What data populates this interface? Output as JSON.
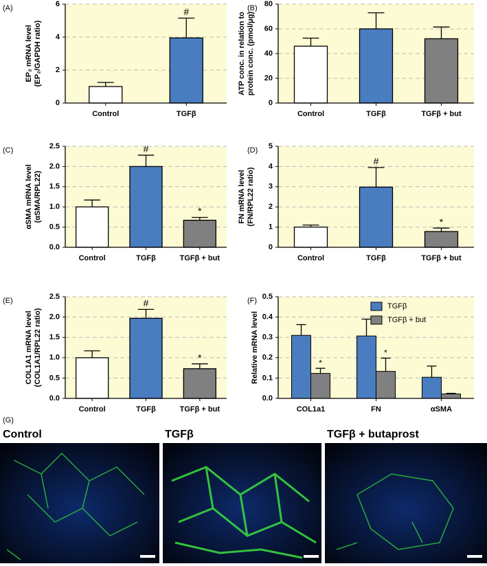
{
  "chart_data": [
    {
      "type": "bar",
      "panel": "(A)",
      "ylabel": [
        "EP₂ mRNA level",
        "(EP₂/GAPDH ratio)"
      ],
      "categories": [
        "Control",
        "TGFβ"
      ],
      "values": [
        1,
        3.95
      ],
      "errors": [
        0.25,
        1.2
      ],
      "colors": [
        "#ffffff",
        "#4a7cc0"
      ],
      "markers": [
        null,
        "#"
      ],
      "ylim": [
        0,
        6
      ],
      "yticks": [
        0,
        2,
        4,
        6
      ],
      "grid": true
    },
    {
      "type": "bar",
      "panel": "(B)",
      "ylabel": [
        "ATP conc. in relation to",
        "protein conc. (pmol/μg)"
      ],
      "categories": [
        "Control",
        "TGFβ",
        "TGFβ + but"
      ],
      "values": [
        46,
        60,
        52
      ],
      "errors": [
        6.5,
        13,
        9.5
      ],
      "colors": [
        "#ffffff",
        "#4a7cc0",
        "#808080"
      ],
      "ylim": [
        0,
        80
      ],
      "yticks": [
        0,
        20,
        40,
        60,
        80
      ],
      "grid": true
    },
    {
      "type": "bar",
      "panel": "(C)",
      "ylabel": [
        "αSMA mRNA level",
        "(αSMA/RPL22)"
      ],
      "categories": [
        "Control",
        "TGFβ",
        "TGFβ + but"
      ],
      "values": [
        1,
        2,
        0.67
      ],
      "errors": [
        0.17,
        0.28,
        0.07
      ],
      "colors": [
        "#ffffff",
        "#4a7cc0",
        "#808080"
      ],
      "markers": [
        null,
        "#",
        "*"
      ],
      "ylim": [
        0,
        2.5
      ],
      "yticks": [
        {
          "value": 0,
          "label": "0.0"
        },
        {
          "value": 0.5,
          "label": "0.5"
        },
        {
          "value": 1,
          "label": "1.0"
        },
        {
          "value": 1.5,
          "label": "1.5"
        },
        {
          "value": 2,
          "label": "2.0"
        },
        {
          "value": 2.5,
          "label": "2.5"
        }
      ],
      "grid": true
    },
    {
      "type": "bar",
      "panel": "(D)",
      "ylabel": [
        "FN mRNA level",
        "(FN/RPL22 ratio)"
      ],
      "categories": [
        "Control",
        "TGFβ",
        "TGFβ + but"
      ],
      "values": [
        1,
        2.98,
        0.78
      ],
      "errors": [
        0.1,
        0.97,
        0.17
      ],
      "colors": [
        "#ffffff",
        "#4a7cc0",
        "#808080"
      ],
      "markers": [
        null,
        "#",
        "*"
      ],
      "ylim": [
        0,
        5
      ],
      "yticks": [
        0,
        1,
        2,
        3,
        4,
        5
      ],
      "grid": true
    },
    {
      "type": "bar",
      "panel": "(E)",
      "ylabel": [
        "COL1A1 mRNA level",
        "(COL1A1/RPL22 ratio)"
      ],
      "categories": [
        "Control",
        "TGFβ",
        "TGFβ + but"
      ],
      "values": [
        1,
        1.97,
        0.73
      ],
      "errors": [
        0.17,
        0.22,
        0.12
      ],
      "colors": [
        "#ffffff",
        "#4a7cc0",
        "#808080"
      ],
      "markers": [
        null,
        "#",
        "*"
      ],
      "ylim": [
        0,
        2.5
      ],
      "yticks": [
        {
          "value": 0,
          "label": "0.0"
        },
        {
          "value": 0.5,
          "label": "0.5"
        },
        {
          "value": 1,
          "label": "1.0"
        },
        {
          "value": 1.5,
          "label": "1.5"
        },
        {
          "value": 2,
          "label": "2.0"
        },
        {
          "value": 2.5,
          "label": "2.5"
        }
      ],
      "grid": true
    },
    {
      "type": "grouped_bar",
      "panel": "(F)",
      "ylabel": [
        "Relative mRNA level"
      ],
      "categories": [
        "COL1a1",
        "FN",
        "αSMA"
      ],
      "series": [
        {
          "name": "TGFβ",
          "color": "#4a7cc0",
          "values": [
            0.31,
            0.307,
            0.104
          ],
          "errors": [
            0.053,
            0.083,
            0.055
          ]
        },
        {
          "name": "TGFβ + but",
          "color": "#808080",
          "values": [
            0.123,
            0.133,
            0.022
          ],
          "errors": [
            0.025,
            0.065,
            0.003
          ],
          "markers": [
            "*",
            "*",
            null
          ]
        }
      ],
      "legend": "top-right",
      "ylim": [
        0,
        0.5
      ],
      "yticks": [
        {
          "value": 0,
          "label": "0.0"
        },
        {
          "value": 0.1,
          "label": "0.1"
        },
        {
          "value": 0.2,
          "label": "0.2"
        },
        {
          "value": 0.3,
          "label": "0.3"
        },
        {
          "value": 0.4,
          "label": "0.4"
        },
        {
          "value": 0.5,
          "label": "0.5"
        }
      ],
      "grid": true
    }
  ],
  "image_panel": {
    "label": "(G)",
    "titles": [
      "Control",
      "TGFβ",
      "TGFβ + butaprost"
    ]
  }
}
